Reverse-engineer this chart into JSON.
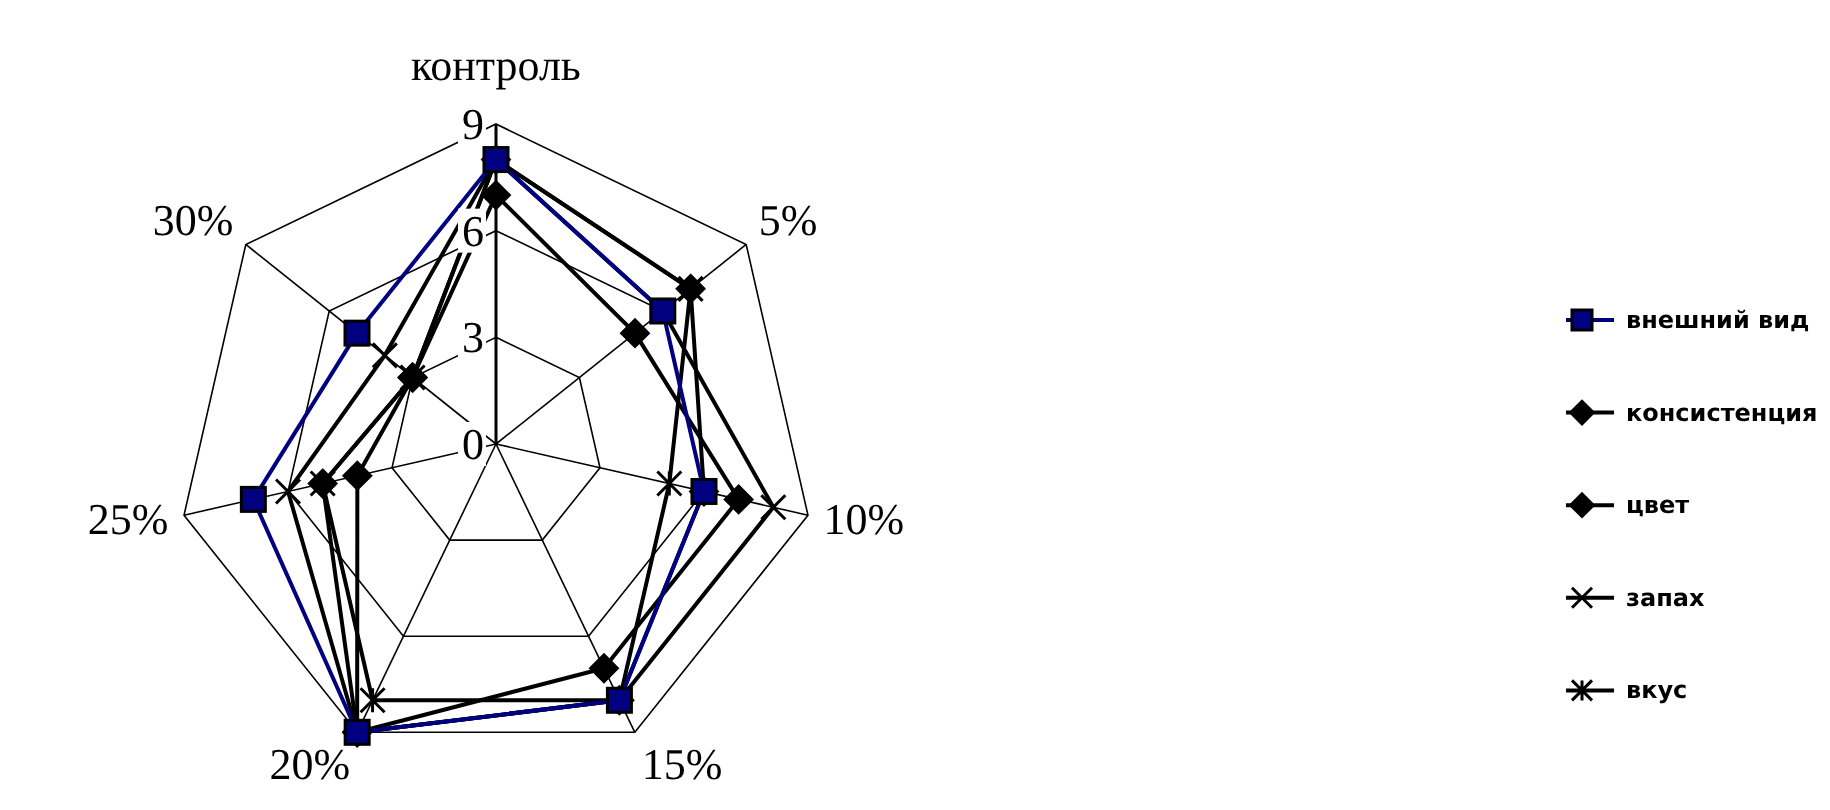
{
  "chart_data": {
    "type": "radar",
    "categories": [
      "контроль",
      "5%",
      "10%",
      "15%",
      "20%",
      "25%",
      "30%"
    ],
    "ylim": [
      0,
      9
    ],
    "yticks": [
      0,
      3,
      6,
      9
    ],
    "grid": true,
    "legend": "right",
    "series": [
      {
        "name": "внешний вид",
        "color": "#000080",
        "marker": "square",
        "values": [
          8,
          6,
          6,
          8,
          9,
          7,
          5
        ]
      },
      {
        "name": "консистенция",
        "color": "#000000",
        "marker": "diamond",
        "values": [
          7,
          5,
          7,
          7,
          9,
          4,
          3
        ]
      },
      {
        "name": "цвет",
        "color": "#000000",
        "marker": "diamond",
        "values": [
          8,
          7,
          6,
          8,
          9,
          5,
          3
        ]
      },
      {
        "name": "запах",
        "color": "#000000",
        "marker": "cross",
        "values": [
          8,
          6,
          8,
          8,
          9,
          6,
          4
        ]
      },
      {
        "name": "вкус",
        "color": "#000000",
        "marker": "star",
        "values": [
          8,
          7,
          5,
          8,
          8,
          5,
          3
        ]
      }
    ]
  }
}
